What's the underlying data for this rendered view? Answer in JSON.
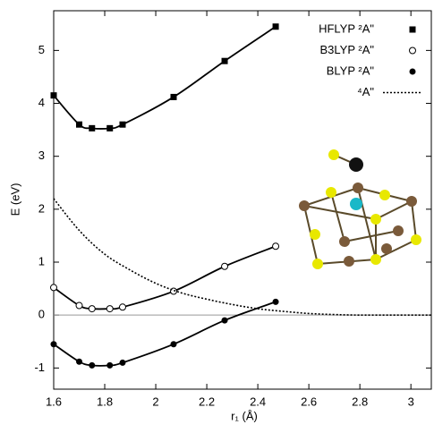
{
  "chart_data": {
    "type": "line",
    "xlabel": "r₁ (Å)",
    "ylabel": "E (eV)",
    "xlim": [
      1.6,
      3.08
    ],
    "ylim": [
      -1.4,
      5.75
    ],
    "xticks": [
      1.6,
      1.8,
      2,
      2.2,
      2.4,
      2.6,
      2.8,
      3
    ],
    "yticks": [
      -1,
      0,
      1,
      2,
      3,
      4,
      5
    ],
    "zero_line": true,
    "legend": "upper right",
    "series": [
      {
        "name": "HFLYP ²A\"",
        "color": "#000000",
        "marker": "square",
        "dash": "solid",
        "x": [
          1.6,
          1.7,
          1.75,
          1.82,
          1.87,
          2.07,
          2.27,
          2.47
        ],
        "values": [
          4.15,
          3.6,
          3.53,
          3.53,
          3.6,
          4.12,
          4.8,
          5.45
        ]
      },
      {
        "name": "B3LYP ²A\"",
        "color": "#000000",
        "marker": "open-circle",
        "dash": "solid",
        "x": [
          1.6,
          1.7,
          1.75,
          1.82,
          1.87,
          2.07,
          2.27,
          2.47
        ],
        "values": [
          0.52,
          0.18,
          0.12,
          0.12,
          0.15,
          0.45,
          0.92,
          1.3
        ]
      },
      {
        "name": "BLYP ²A\"",
        "color": "#000000",
        "marker": "circle",
        "dash": "solid",
        "x": [
          1.6,
          1.7,
          1.75,
          1.82,
          1.87,
          2.07,
          2.27,
          2.47
        ],
        "values": [
          -0.55,
          -0.88,
          -0.95,
          -0.95,
          -0.9,
          -0.55,
          -0.1,
          0.25
        ]
      },
      {
        "name": "⁴A\"",
        "color": "#000000",
        "marker": "none",
        "dash": "dotted",
        "x": [
          1.6,
          1.7,
          1.8,
          1.9,
          2.0,
          2.1,
          2.2,
          2.3,
          2.4,
          2.5,
          2.6,
          2.7,
          2.8,
          3.0,
          3.08
        ],
        "values": [
          2.2,
          1.6,
          1.15,
          0.85,
          0.6,
          0.42,
          0.3,
          0.2,
          0.12,
          0.07,
          0.03,
          0.01,
          0,
          0,
          0
        ]
      }
    ]
  }
}
